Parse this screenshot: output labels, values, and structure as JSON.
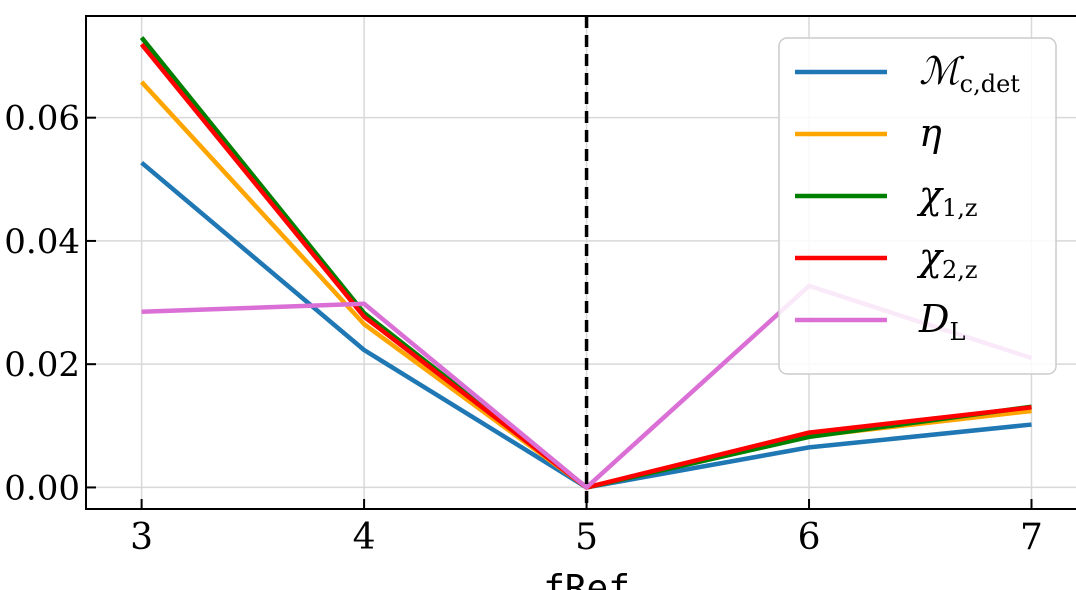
{
  "chart_data": {
    "type": "line",
    "xlabel": "fRef",
    "ylabel": "",
    "title": "",
    "x": [
      3,
      4,
      5,
      6,
      7
    ],
    "x_ticks": [
      "3",
      "4",
      "5",
      "6",
      "7"
    ],
    "y_ticks": [
      "0.00",
      "0.02",
      "0.04",
      "0.06"
    ],
    "xlim": [
      2.75,
      7.2
    ],
    "ylim": [
      -0.0035,
      0.0765
    ],
    "grid": true,
    "vline": {
      "x": 5,
      "style": "dashed",
      "color": "#000000"
    },
    "legend": {
      "placement": "top-right"
    },
    "series": [
      {
        "name": "M_c,det",
        "label_main": "ℳ",
        "label_sub": "c,det",
        "color": "#1f77b4",
        "values": [
          0.0527,
          0.0223,
          0.0,
          0.0065,
          0.0102
        ]
      },
      {
        "name": "eta",
        "label_main": "η",
        "label_sub": "",
        "color": "#ffa500",
        "values": [
          0.0658,
          0.0265,
          0.0,
          0.0083,
          0.0124
        ]
      },
      {
        "name": "chi_1,z",
        "label_main": "χ",
        "label_sub": "1,z",
        "color": "#008000",
        "values": [
          0.073,
          0.0283,
          0.0,
          0.0082,
          0.0131
        ]
      },
      {
        "name": "chi_2,z",
        "label_main": "χ",
        "label_sub": "2,z",
        "color": "#ff0000",
        "values": [
          0.0719,
          0.0277,
          0.0,
          0.0089,
          0.013
        ]
      },
      {
        "name": "D_L",
        "label_main": "D",
        "label_sub": "L",
        "color": "#da70d6",
        "values": [
          0.0285,
          0.0298,
          0.0,
          0.0327,
          0.021
        ]
      }
    ]
  }
}
